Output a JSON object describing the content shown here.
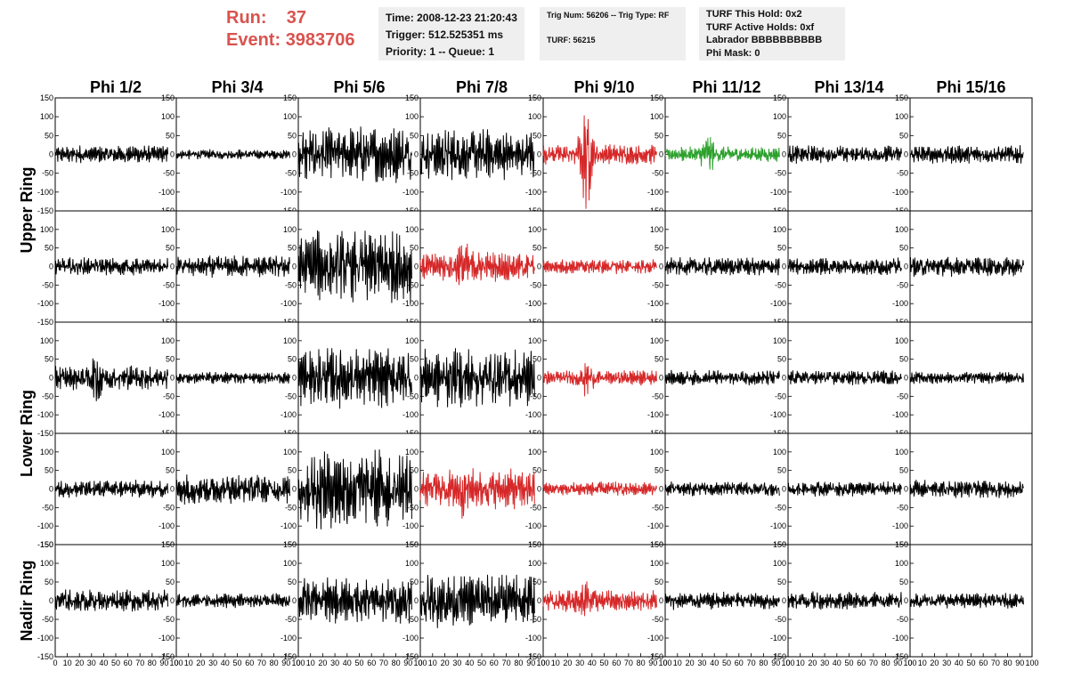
{
  "header": {
    "run_label": "Run:",
    "run_value": "37",
    "event_label": "Event:",
    "event_value": "3983706"
  },
  "info_boxes": {
    "time": "Time: 2008-12-23 21:20:43",
    "trigger": "Trigger: 512.525351 ms",
    "priority": "Priority: 1 -- Queue: 1",
    "trig_num": "Trig Num: 56206 -- Trig Type: RF",
    "turf": "TURF: 56215",
    "turf_this_hold": "TURF This Hold: 0x2",
    "turf_active_holds": "TURF Active Holds: 0xf",
    "labrador": "Labrador BBBBBBBBBB",
    "phi_mask": "Phi Mask: 0"
  },
  "chart_data": {
    "type": "line",
    "columns": [
      "Phi 1/2",
      "Phi 3/4",
      "Phi 5/6",
      "Phi 7/8",
      "Phi 9/10",
      "Phi 11/12",
      "Phi 13/14",
      "Phi 15/16"
    ],
    "rows": [
      "Upper Ring",
      "Lower Ring",
      "Nadir Ring"
    ],
    "xlim": [
      0,
      100
    ],
    "ylim": [
      -150,
      150
    ],
    "x_ticks": [
      "0",
      "10",
      "20",
      "30",
      "40",
      "50",
      "60",
      "70",
      "80",
      "90",
      "100"
    ],
    "y_ticks_upper": [
      "150",
      "100",
      "50",
      "0",
      "-50",
      "-100",
      "-150"
    ],
    "y_ticks_mid": [
      "100",
      "50",
      "0",
      "-50",
      "-100",
      "-150"
    ],
    "trace_colors": {
      "normal": "#000000",
      "triggered": "#d62728",
      "l1": "#2ca02c"
    },
    "panels": [
      {
        "row": 0,
        "col": 0,
        "color": "normal",
        "amplitude": 18,
        "burst": false
      },
      {
        "row": 0,
        "col": 1,
        "color": "normal",
        "amplitude": 10,
        "burst": false
      },
      {
        "row": 0,
        "col": 2,
        "color": "normal",
        "amplitude": 55,
        "burst": false
      },
      {
        "row": 0,
        "col": 3,
        "color": "normal",
        "amplitude": 50,
        "burst": false
      },
      {
        "row": 0,
        "col": 4,
        "color": "triggered",
        "amplitude": 20,
        "burst": true,
        "burst_amp": 120
      },
      {
        "row": 0,
        "col": 5,
        "color": "l1",
        "amplitude": 15,
        "burst": true,
        "burst_amp": 45
      },
      {
        "row": 0,
        "col": 6,
        "color": "normal",
        "amplitude": 18,
        "burst": false
      },
      {
        "row": 0,
        "col": 7,
        "color": "normal",
        "amplitude": 18,
        "burst": false
      },
      {
        "row": 1,
        "col": 0,
        "color": "normal",
        "amplitude": 18,
        "burst": false
      },
      {
        "row": 1,
        "col": 1,
        "color": "normal",
        "amplitude": 22,
        "burst": false
      },
      {
        "row": 1,
        "col": 2,
        "color": "normal",
        "amplitude": 72,
        "burst": false
      },
      {
        "row": 1,
        "col": 3,
        "color": "triggered",
        "amplitude": 30,
        "burst": true,
        "burst_amp": 60
      },
      {
        "row": 1,
        "col": 4,
        "color": "triggered",
        "amplitude": 15,
        "burst": false
      },
      {
        "row": 1,
        "col": 5,
        "color": "normal",
        "amplitude": 18,
        "burst": false
      },
      {
        "row": 1,
        "col": 6,
        "color": "normal",
        "amplitude": 18,
        "burst": false
      },
      {
        "row": 1,
        "col": 7,
        "color": "normal",
        "amplitude": 20,
        "burst": false
      },
      {
        "row": 2,
        "col": 0,
        "color": "normal",
        "amplitude": 25,
        "burst": true,
        "burst_amp": 60
      },
      {
        "row": 2,
        "col": 1,
        "color": "normal",
        "amplitude": 12,
        "burst": false
      },
      {
        "row": 2,
        "col": 2,
        "color": "normal",
        "amplitude": 60,
        "burst": false
      },
      {
        "row": 2,
        "col": 3,
        "color": "normal",
        "amplitude": 60,
        "burst": false
      },
      {
        "row": 2,
        "col": 4,
        "color": "triggered",
        "amplitude": 15,
        "burst": true,
        "burst_amp": 45
      },
      {
        "row": 2,
        "col": 5,
        "color": "normal",
        "amplitude": 15,
        "burst": false
      },
      {
        "row": 2,
        "col": 6,
        "color": "normal",
        "amplitude": 15,
        "burst": false
      },
      {
        "row": 2,
        "col": 7,
        "color": "normal",
        "amplitude": 12,
        "burst": false
      },
      {
        "row": 3,
        "col": 0,
        "color": "normal",
        "amplitude": 18,
        "burst": false
      },
      {
        "row": 3,
        "col": 1,
        "color": "normal",
        "amplitude": 30,
        "burst": false
      },
      {
        "row": 3,
        "col": 2,
        "color": "normal",
        "amplitude": 80,
        "burst": false
      },
      {
        "row": 3,
        "col": 3,
        "color": "triggered",
        "amplitude": 40,
        "burst": true,
        "burst_amp": 60
      },
      {
        "row": 3,
        "col": 4,
        "color": "triggered",
        "amplitude": 15,
        "burst": false
      },
      {
        "row": 3,
        "col": 5,
        "color": "normal",
        "amplitude": 15,
        "burst": false
      },
      {
        "row": 3,
        "col": 6,
        "color": "normal",
        "amplitude": 15,
        "burst": false
      },
      {
        "row": 3,
        "col": 7,
        "color": "normal",
        "amplitude": 18,
        "burst": false
      },
      {
        "row": 4,
        "col": 0,
        "color": "normal",
        "amplitude": 22,
        "burst": false
      },
      {
        "row": 4,
        "col": 1,
        "color": "normal",
        "amplitude": 15,
        "burst": false
      },
      {
        "row": 4,
        "col": 2,
        "color": "normal",
        "amplitude": 45,
        "burst": false
      },
      {
        "row": 4,
        "col": 3,
        "color": "normal",
        "amplitude": 55,
        "burst": false
      },
      {
        "row": 4,
        "col": 4,
        "color": "triggered",
        "amplitude": 22,
        "burst": true,
        "burst_amp": 40
      },
      {
        "row": 4,
        "col": 5,
        "color": "normal",
        "amplitude": 18,
        "burst": false
      },
      {
        "row": 4,
        "col": 6,
        "color": "normal",
        "amplitude": 18,
        "burst": false
      },
      {
        "row": 4,
        "col": 7,
        "color": "normal",
        "amplitude": 15,
        "burst": false
      }
    ]
  }
}
